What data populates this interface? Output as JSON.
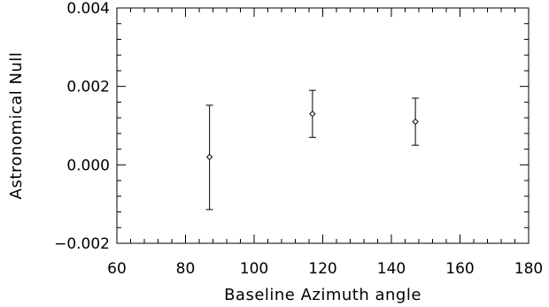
{
  "chart_data": {
    "type": "scatter",
    "xlabel": "Baseline Azimuth angle",
    "ylabel": "Astronomical Null",
    "xlim": [
      60,
      180
    ],
    "ylim": [
      -0.002,
      0.004
    ],
    "x_ticks": [
      60,
      80,
      100,
      120,
      140,
      160,
      180
    ],
    "x_tick_labels": [
      "60",
      "80",
      "100",
      "120",
      "140",
      "160",
      "180"
    ],
    "y_ticks": [
      -0.002,
      0.0,
      0.002,
      0.004
    ],
    "y_tick_labels": [
      "−0.002",
      "0.000",
      "0.002",
      "0.004"
    ],
    "x_minor_step": 4,
    "y_minor_step": 0.0004,
    "grid": false,
    "series": [
      {
        "marker": "diamond",
        "points": [
          {
            "x": 87,
            "y": 0.0002,
            "ylow": -0.00114,
            "yhigh": 0.00152
          },
          {
            "x": 117,
            "y": 0.0013,
            "ylow": 0.0007,
            "yhigh": 0.0019
          },
          {
            "x": 147,
            "y": 0.0011,
            "ylow": 0.0005,
            "yhigh": 0.0017
          }
        ]
      }
    ]
  }
}
